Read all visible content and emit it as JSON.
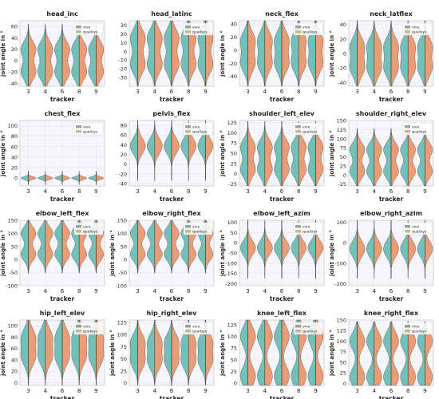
{
  "figure": {
    "colors": {
      "vive": "#3aaa9a",
      "qualisys": "#e2783c",
      "vive_legend": "#8ba9a2",
      "qualisys_legend": "#cdb882",
      "plot_bg": "#f5f5fb",
      "grid": "#e2dff0"
    }
  },
  "chart_data": [
    {
      "type": "violin",
      "title": "head_inc",
      "xlabel": "tracker",
      "ylabel": "joint angle in °",
      "categories": [
        "3",
        "4",
        "6",
        "8",
        "9"
      ],
      "ylim": [
        -45,
        70
      ],
      "yticks": [
        -40,
        -20,
        0,
        20,
        40,
        60
      ],
      "legend": {
        "placement": "top-right",
        "entries": [
          "vive",
          "qualisys"
        ]
      },
      "distribution": {
        "center": 0,
        "spread": 40,
        "modes": [
          -20,
          20
        ]
      }
    },
    {
      "type": "violin",
      "title": "head_latinc",
      "xlabel": "tracker",
      "ylabel": "",
      "categories": [
        "3",
        "4",
        "6",
        "8",
        "9"
      ],
      "ylim": [
        -40,
        35
      ],
      "yticks": [
        -30,
        -20,
        -10,
        0,
        10,
        20,
        30
      ],
      "legend": {
        "placement": "top-right",
        "entries": [
          "vive",
          "qualisys"
        ]
      },
      "distribution": {
        "center": 0,
        "spread": 30,
        "modes": [
          -15,
          15
        ]
      }
    },
    {
      "type": "violin",
      "title": "neck_flex",
      "xlabel": "tracker",
      "ylabel": "joint angle in °",
      "categories": [
        "3",
        "4",
        "6",
        "8",
        "9"
      ],
      "ylim": [
        -55,
        45
      ],
      "yticks": [
        -40,
        -20,
        0,
        20,
        40
      ],
      "legend": {
        "placement": "top-right",
        "entries": [
          "vive",
          "qualisys"
        ]
      },
      "distribution": {
        "center": -5,
        "spread": 40,
        "modes": [
          -20,
          15
        ]
      }
    },
    {
      "type": "violin",
      "title": "neck_latflex",
      "xlabel": "tracker",
      "ylabel": "joint angle in °",
      "categories": [
        "3",
        "4",
        "6",
        "8",
        "9"
      ],
      "ylim": [
        -45,
        45
      ],
      "yticks": [
        -40,
        -20,
        0,
        20,
        40
      ],
      "legend": {
        "placement": "top-right",
        "entries": [
          "vive",
          "qualisys"
        ]
      },
      "distribution": {
        "center": 0,
        "spread": 35,
        "modes": [
          -20,
          10
        ]
      }
    },
    {
      "type": "violin",
      "title": "chest_flex",
      "xlabel": "tracker",
      "ylabel": "joint angle in °",
      "categories": [
        "3",
        "4",
        "6",
        "8",
        "9"
      ],
      "ylim": [
        -15,
        110
      ],
      "yticks": [
        0,
        20,
        40,
        60,
        80,
        100
      ],
      "legend": {
        "placement": "top-right",
        "entries": [
          "vive",
          "qualisys"
        ]
      },
      "distribution": {
        "center": 0,
        "spread": 8,
        "modes": [
          0
        ]
      }
    },
    {
      "type": "violin",
      "title": "pelvis_flex",
      "xlabel": "tracker",
      "ylabel": "",
      "categories": [
        "3",
        "4",
        "6",
        "8",
        "9"
      ],
      "ylim": [
        -45,
        90
      ],
      "yticks": [
        -40,
        -20,
        0,
        20,
        40,
        60,
        80
      ],
      "legend": {
        "placement": "top-right",
        "entries": [
          "vive",
          "qualisys"
        ]
      },
      "distribution": {
        "center": 30,
        "spread": 40,
        "modes": [
          30,
          45
        ]
      }
    },
    {
      "type": "violin",
      "title": "shoulder_left_elev",
      "xlabel": "tracker",
      "ylabel": "joint angle in °",
      "categories": [
        "3",
        "4",
        "6",
        "8",
        "9"
      ],
      "ylim": [
        -30,
        130
      ],
      "yticks": [
        -25,
        0,
        25,
        50,
        75,
        100,
        125
      ],
      "legend": {
        "placement": "top-right",
        "entries": [
          "vive",
          "qualisys"
        ]
      },
      "distribution": {
        "center": 40,
        "spread": 55,
        "modes": [
          10,
          65
        ]
      }
    },
    {
      "type": "violin",
      "title": "shoulder_right_elev",
      "xlabel": "tracker",
      "ylabel": "joint angle in °",
      "categories": [
        "3",
        "4",
        "6",
        "8",
        "9"
      ],
      "ylim": [
        -30,
        150
      ],
      "yticks": [
        -25,
        0,
        25,
        50,
        75,
        100,
        125,
        150
      ],
      "legend": {
        "placement": "top-right",
        "entries": [
          "vive",
          "qualisys"
        ]
      },
      "distribution": {
        "center": 40,
        "spread": 55,
        "modes": [
          10,
          70
        ]
      }
    },
    {
      "type": "violin",
      "title": "elbow_left_flex",
      "xlabel": "tracker",
      "ylabel": "joint angle in °",
      "categories": [
        "3",
        "4",
        "6",
        "8",
        "9"
      ],
      "ylim": [
        -100,
        150
      ],
      "yticks": [
        -100,
        -50,
        0,
        50,
        100,
        150
      ],
      "legend": {
        "placement": "top-right",
        "entries": [
          "vive",
          "qualisys"
        ]
      },
      "distribution": {
        "center": 60,
        "spread": 70,
        "modes": [
          20,
          100
        ]
      }
    },
    {
      "type": "violin",
      "title": "elbow_right_flex",
      "xlabel": "tracker",
      "ylabel": "joint angle in °",
      "categories": [
        "3",
        "4",
        "6",
        "8",
        "9"
      ],
      "ylim": [
        -100,
        150
      ],
      "yticks": [
        -100,
        -50,
        0,
        50,
        100,
        150
      ],
      "legend": {
        "placement": "top-right",
        "entries": [
          "vive",
          "qualisys"
        ]
      },
      "distribution": {
        "center": 60,
        "spread": 70,
        "modes": [
          20,
          100
        ]
      }
    },
    {
      "type": "violin",
      "title": "elbow_left_azim",
      "xlabel": "tracker",
      "ylabel": "joint angle in °",
      "categories": [
        "3",
        "4",
        "6",
        "8",
        "9"
      ],
      "ylim": [
        -210,
        110
      ],
      "yticks": [
        -200,
        -150,
        -100,
        -50,
        0,
        50,
        100
      ],
      "legend": {
        "placement": "top-right",
        "entries": [
          "vive",
          "qualisys"
        ]
      },
      "distribution": {
        "center": -30,
        "spread": 90,
        "modes": [
          -10,
          -40
        ]
      }
    },
    {
      "type": "violin",
      "title": "elbow_right_azim",
      "xlabel": "tracker",
      "ylabel": "joint angle in °",
      "categories": [
        "3",
        "4",
        "6",
        "8",
        "9"
      ],
      "ylim": [
        -210,
        110
      ],
      "yticks": [
        -200,
        -100,
        0,
        100
      ],
      "legend": {
        "placement": "top-right",
        "entries": [
          "vive",
          "qualisys"
        ]
      },
      "distribution": {
        "center": -30,
        "spread": 90,
        "modes": [
          -10,
          -50
        ]
      }
    },
    {
      "type": "violin",
      "title": "hip_left_elev",
      "xlabel": "tracker",
      "ylabel": "joint angle in °",
      "categories": [
        "3",
        "4",
        "6",
        "8",
        "9"
      ],
      "ylim": [
        -5,
        110
      ],
      "yticks": [
        0,
        20,
        40,
        60,
        80,
        100
      ],
      "legend": {
        "placement": "top-right",
        "entries": [
          "vive",
          "qualisys"
        ]
      },
      "distribution": {
        "center": 60,
        "spread": 45,
        "modes": [
          45,
          80
        ]
      }
    },
    {
      "type": "violin",
      "title": "hip_right_elev",
      "xlabel": "tracker",
      "ylabel": "joint angle in °",
      "categories": [
        "3",
        "4",
        "6",
        "8",
        "9"
      ],
      "ylim": [
        -5,
        130
      ],
      "yticks": [
        0,
        25,
        50,
        75,
        100,
        125
      ],
      "legend": {
        "placement": "top-right",
        "entries": [
          "vive",
          "qualisys"
        ]
      },
      "distribution": {
        "center": 60,
        "spread": 50,
        "modes": [
          45,
          85
        ]
      }
    },
    {
      "type": "violin",
      "title": "knee_left_flex",
      "xlabel": "tracker",
      "ylabel": "joint angle in °",
      "categories": [
        "3",
        "4",
        "6",
        "8",
        "9"
      ],
      "ylim": [
        -5,
        135
      ],
      "yticks": [
        0,
        25,
        50,
        75,
        100,
        125
      ],
      "legend": {
        "placement": "top-right",
        "entries": [
          "vive",
          "qualisys"
        ]
      },
      "distribution": {
        "center": 50,
        "spread": 60,
        "modes": [
          15,
          100
        ]
      }
    },
    {
      "type": "violin",
      "title": "knee_right_flex",
      "xlabel": "tracker",
      "ylabel": "joint angle in °",
      "categories": [
        "3",
        "4",
        "6",
        "8",
        "9"
      ],
      "ylim": [
        -5,
        150
      ],
      "yticks": [
        0,
        25,
        50,
        75,
        100,
        125,
        150
      ],
      "legend": {
        "placement": "top-right",
        "entries": [
          "vive",
          "qualisys"
        ]
      },
      "distribution": {
        "center": 50,
        "spread": 60,
        "modes": [
          15,
          100
        ]
      }
    }
  ]
}
